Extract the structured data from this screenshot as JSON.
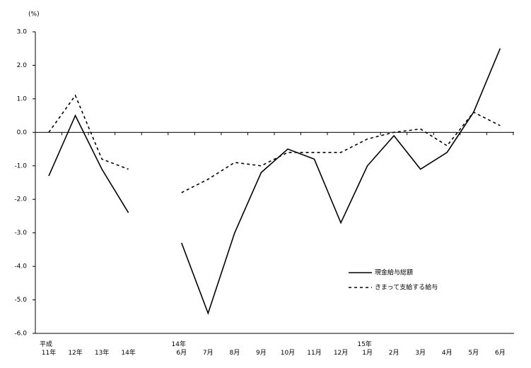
{
  "chart_data": {
    "type": "line",
    "y_label": "(%)",
    "categories": [
      "平成\n11年",
      "12年",
      "13年",
      "14年",
      null,
      "14年\n6月",
      "7月",
      "8月",
      "9月",
      "10月",
      "11月",
      "12月",
      "15年\n1月",
      "2月",
      "3月",
      "4月",
      "5月",
      "6月"
    ],
    "series": [
      {
        "name": "現金給与総額",
        "color": "#000000",
        "dash": "solid",
        "values": [
          -1.3,
          0.5,
          -1.1,
          -2.4,
          null,
          -3.3,
          -5.4,
          -3.0,
          -1.2,
          -0.5,
          -0.8,
          -2.7,
          -1.0,
          -0.1,
          -1.1,
          -0.6,
          0.6,
          2.5
        ]
      },
      {
        "name": "きまって支給する給与",
        "color": "#000000",
        "dash": "dashed",
        "values": [
          0.0,
          1.1,
          -0.8,
          -1.1,
          null,
          -1.8,
          -1.4,
          -0.9,
          -1.0,
          -0.6,
          -0.6,
          -0.6,
          -0.2,
          0.0,
          0.1,
          -0.4,
          0.6,
          0.2
        ]
      }
    ],
    "ylim": [
      -6,
      3
    ],
    "yticks": [
      {
        "value": 3,
        "label": "3.0"
      },
      {
        "value": 2,
        "label": "2.0"
      },
      {
        "value": 1,
        "label": "1.0"
      },
      {
        "value": 0,
        "label": "0.0"
      },
      {
        "value": -1,
        "label": "-1.0"
      },
      {
        "value": -2,
        "label": "-2.0"
      },
      {
        "value": -3,
        "label": "-3.0"
      },
      {
        "value": -4,
        "label": "-4.0"
      },
      {
        "value": -5,
        "label": "-5.0"
      },
      {
        "value": -6,
        "label": "-6.0"
      }
    ],
    "grid": false,
    "legend": "lower right"
  }
}
